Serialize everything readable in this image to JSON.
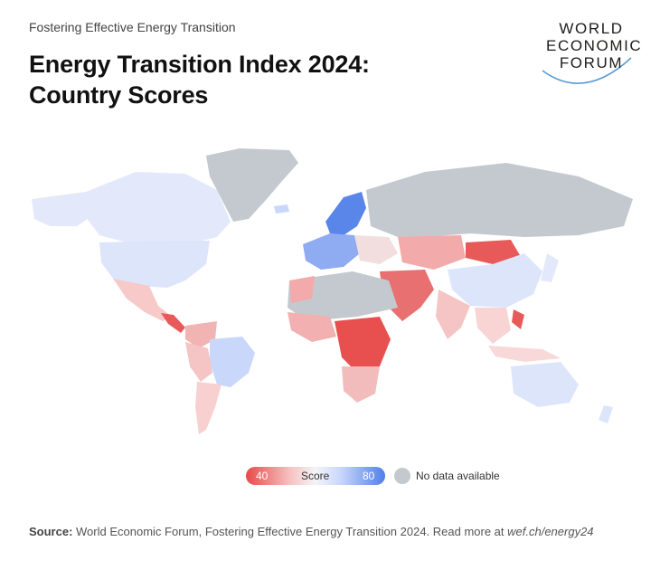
{
  "header": {
    "kicker": "Fostering Effective Energy Transition",
    "title_line1": "Energy Transition Index 2024:",
    "title_line2": "Country Scores"
  },
  "logo": {
    "line1": "WORLD",
    "line2": "ECONOMIC",
    "line3": "FORUM"
  },
  "legend": {
    "min": "40",
    "label": "Score",
    "max": "80",
    "no_data": "No data available"
  },
  "colors": {
    "low": "#e84a4a",
    "mid": "#f4f4f8",
    "high": "#4f7fe8",
    "no_data": "#c4c9cf"
  },
  "source": {
    "label": "Source:",
    "text": " World Economic Forum, Fostering Effective Energy Transition 2024. Read more at ",
    "link": "wef.ch/energy24"
  }
}
